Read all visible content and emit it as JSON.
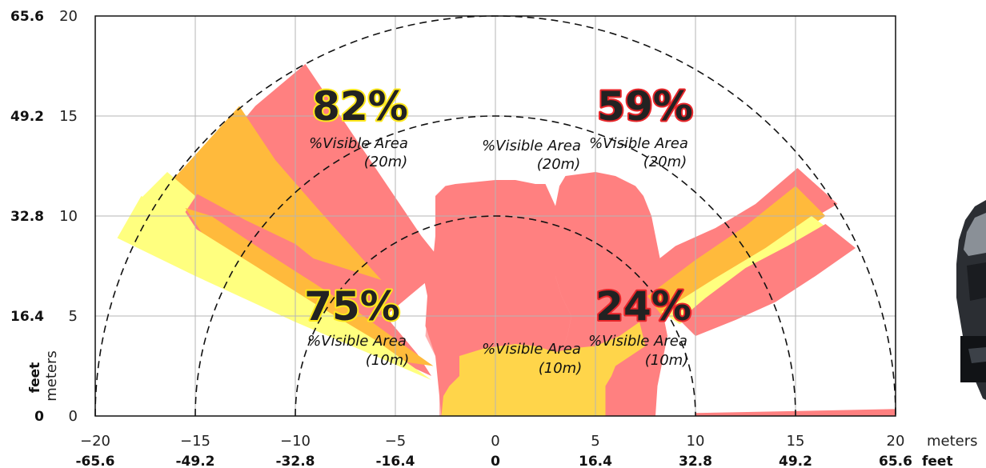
{
  "chart_data": {
    "type": "area",
    "title": "",
    "x_axis": {
      "range": [
        -20,
        20
      ],
      "ticks_meters": [
        "−20",
        "−15",
        "−10",
        "−5",
        "0",
        "5",
        "10",
        "15",
        "20"
      ],
      "ticks_feet": [
        "-65.6",
        "-49.2",
        "-32.8",
        "-16.4",
        "0",
        "16.4",
        "32.8",
        "49.2",
        "65.6"
      ],
      "unit_meters": "meters",
      "unit_feet": "feet"
    },
    "y_axis": {
      "range": [
        0,
        20
      ],
      "ticks_meters": [
        "0",
        "5",
        "10",
        "15",
        "20"
      ],
      "ticks_feet": [
        "0",
        "16.4",
        "32.8",
        "49.2",
        "65.6"
      ],
      "unit_meters": "meters",
      "unit_feet": "feet"
    },
    "grid": true,
    "range_rings_m": [
      10,
      15,
      20
    ],
    "annotations": [
      {
        "percent": "82%",
        "label_line1": "%Visible Area",
        "label_line2": "(20m)",
        "highlight": "#ffe81c",
        "pos": "upper-left"
      },
      {
        "percent": "59%",
        "label_line1": "%Visible Area",
        "label_line2": "(20m)",
        "highlight": "#e8262a",
        "pos": "upper-right"
      },
      {
        "percent": "75%",
        "label_line1": "%Visible Area",
        "label_line2": "(10m)",
        "highlight": "#ffe81c",
        "pos": "lower-left"
      },
      {
        "percent": "24%",
        "label_line1": "%Visible Area",
        "label_line2": "(10m)",
        "highlight": "#e8262a",
        "pos": "lower-right"
      }
    ],
    "center_labels": [
      {
        "line1": "%Visible Area",
        "line2": "(20m)"
      },
      {
        "line1": "%Visible Area",
        "line2": "(10m)"
      }
    ],
    "regions": [
      {
        "name": "inner-pink",
        "color": "#ffb0b0",
        "points": [
          [
            -2.8,
            0
          ],
          [
            -2.8,
            1
          ],
          [
            -2.4,
            2
          ],
          [
            -3,
            3
          ],
          [
            -3.5,
            4
          ],
          [
            -3.4,
            5
          ],
          [
            -3.2,
            6
          ],
          [
            -3.5,
            7
          ],
          [
            -3,
            8
          ],
          [
            -2.5,
            9
          ],
          [
            -0.5,
            9.7
          ],
          [
            0,
            9.9
          ],
          [
            1,
            9.9
          ],
          [
            2.5,
            9.6
          ],
          [
            4,
            8.8
          ],
          [
            5,
            8
          ],
          [
            6,
            6
          ],
          [
            7,
            5
          ],
          [
            7.5,
            3
          ],
          [
            8,
            0
          ]
        ]
      },
      {
        "name": "center-red",
        "color": "#ff8080",
        "points": [
          [
            2.5,
            0
          ],
          [
            2.8,
            2
          ],
          [
            3.2,
            3
          ],
          [
            3.6,
            4
          ],
          [
            3.8,
            5
          ],
          [
            3.3,
            6
          ],
          [
            3,
            7
          ],
          [
            3,
            8
          ],
          [
            3,
            9
          ],
          [
            3,
            10.5
          ],
          [
            3.2,
            11.5
          ],
          [
            3.5,
            12
          ],
          [
            5,
            12.2
          ],
          [
            6,
            12
          ],
          [
            7,
            11.5
          ],
          [
            7.4,
            11
          ],
          [
            7.8,
            10
          ],
          [
            8,
            9
          ],
          [
            8.2,
            8
          ],
          [
            8.4,
            7
          ],
          [
            8.5,
            6
          ],
          [
            8.4,
            5
          ],
          [
            8.6,
            4
          ],
          [
            8.4,
            3
          ],
          [
            8.1,
            1.5
          ],
          [
            8,
            0
          ]
        ]
      },
      {
        "name": "center-red-left",
        "color": "#ff8080",
        "points": [
          [
            -2.7,
            0
          ],
          [
            -3,
            3
          ],
          [
            -3.5,
            4.5
          ],
          [
            -3.4,
            6
          ],
          [
            -3.6,
            7
          ],
          [
            -3.1,
            8
          ],
          [
            -3,
            9
          ],
          [
            -3,
            11
          ],
          [
            -2.5,
            11.5
          ],
          [
            -2,
            11.6
          ],
          [
            0,
            11.8
          ],
          [
            1,
            11.8
          ],
          [
            2,
            11.6
          ],
          [
            2.5,
            11.6
          ],
          [
            3,
            10.5
          ],
          [
            3,
            9
          ],
          [
            3,
            8
          ],
          [
            3,
            7
          ],
          [
            3.3,
            6
          ],
          [
            3.8,
            5
          ],
          [
            3.6,
            4
          ],
          [
            3.2,
            3
          ],
          [
            2.8,
            2
          ],
          [
            2.5,
            0
          ]
        ]
      },
      {
        "name": "center-gold",
        "color": "#ffd54a",
        "points": [
          [
            -2.7,
            0
          ],
          [
            -2.6,
            1
          ],
          [
            -2.3,
            1.5
          ],
          [
            -1.8,
            2
          ],
          [
            -1.8,
            3
          ],
          [
            -0.5,
            3.4
          ],
          [
            1,
            3.6
          ],
          [
            2,
            3.5
          ],
          [
            3,
            3.2
          ],
          [
            4,
            3.4
          ],
          [
            5,
            3.5
          ],
          [
            6.2,
            4
          ],
          [
            7.2,
            4.7
          ],
          [
            7.5,
            3.5
          ],
          [
            6,
            2.5
          ],
          [
            5.8,
            2
          ],
          [
            5.5,
            1.5
          ],
          [
            5.5,
            0
          ]
        ]
      },
      {
        "name": "left-red-upper",
        "color": "#ff8080",
        "points": [
          [
            -2.5,
            7.5
          ],
          [
            -3.7,
            9
          ],
          [
            -9.5,
            17.6
          ],
          [
            -12,
            15.5
          ],
          [
            -13.5,
            13.7
          ],
          [
            -15.2,
            11.5
          ],
          [
            -6.7,
            4
          ]
        ]
      },
      {
        "name": "left-orange-upper",
        "color": "#ffba3c",
        "points": [
          [
            -5.7,
            6.8
          ],
          [
            -9,
            10.5
          ],
          [
            -11,
            12.8
          ],
          [
            -12.8,
            15.5
          ],
          [
            -15.5,
            12.5
          ],
          [
            -17.4,
            10.5
          ]
        ]
      },
      {
        "name": "left-yellow-upper",
        "color": "#ffff7f",
        "points": [
          [
            -6.7,
            5.9
          ],
          [
            -15,
            11
          ],
          [
            -16.4,
            12.2
          ],
          [
            -17.8,
            10.8
          ],
          [
            -15,
            9.2
          ]
        ]
      },
      {
        "name": "left-red-lower",
        "color": "#ff8080",
        "points": [
          [
            -3.2,
            2
          ],
          [
            -3.9,
            3.1
          ],
          [
            -6,
            5.6
          ],
          [
            -8,
            7
          ],
          [
            -10,
            8.6
          ],
          [
            -12.5,
            9.8
          ],
          [
            -14.9,
            11.1
          ],
          [
            -15.5,
            10.2
          ],
          [
            -14,
            7.9
          ],
          [
            -10,
            5.5
          ],
          [
            -6.5,
            3.5
          ]
        ]
      },
      {
        "name": "left-orange-lower",
        "color": "#ffba3c",
        "points": [
          [
            -3.1,
            2.5
          ],
          [
            -4.8,
            3.7
          ],
          [
            -7,
            5.3
          ],
          [
            -9,
            6.6
          ],
          [
            -11.5,
            8.2
          ],
          [
            -14.2,
            10
          ],
          [
            -15.5,
            10.4
          ],
          [
            -14.3,
            8.6
          ],
          [
            -11,
            6
          ],
          [
            -8,
            4.2
          ],
          [
            -5.2,
            2.8
          ]
        ]
      },
      {
        "name": "left-yellow-lower",
        "color": "#ffff7f",
        "points": [
          [
            -3.2,
            1.8
          ],
          [
            -6,
            3.8
          ],
          [
            -9,
            5.6
          ],
          [
            -12,
            7.5
          ],
          [
            -16,
            10
          ],
          [
            -17.7,
            11
          ],
          [
            -18.9,
            8.9
          ],
          [
            -15,
            7
          ],
          [
            -10,
            4.7
          ],
          [
            -6,
            3
          ]
        ]
      },
      {
        "name": "right-red-upper",
        "color": "#ff8080",
        "points": [
          [
            7.6,
            7.4
          ],
          [
            9,
            8.5
          ],
          [
            11,
            9.4
          ],
          [
            13,
            10.6
          ],
          [
            15.1,
            12.4
          ],
          [
            17.1,
            10.6
          ],
          [
            14,
            8.8
          ],
          [
            11,
            6.8
          ],
          [
            8.4,
            5.4
          ]
        ]
      },
      {
        "name": "right-orange-upper",
        "color": "#ffba3c",
        "points": [
          [
            7.6,
            6
          ],
          [
            10,
            7.8
          ],
          [
            12.5,
            9.5
          ],
          [
            15,
            11.5
          ],
          [
            16.5,
            10
          ],
          [
            14,
            8.3
          ],
          [
            11,
            6.3
          ],
          [
            8.4,
            4.9
          ]
        ]
      },
      {
        "name": "right-yellow-upper",
        "color": "#ffff7f",
        "points": [
          [
            8.3,
            5.2
          ],
          [
            11,
            6.9
          ],
          [
            13.5,
            8.4
          ],
          [
            15.8,
            10
          ],
          [
            17.5,
            8.7
          ],
          [
            15,
            7.2
          ],
          [
            12,
            5.9
          ],
          [
            9.2,
            4.6
          ]
        ]
      },
      {
        "name": "right-red-lower",
        "color": "#ff8080",
        "points": [
          [
            10,
            4
          ],
          [
            12,
            4.8
          ],
          [
            14,
            5.7
          ],
          [
            16,
            7
          ],
          [
            18,
            8.4
          ],
          [
            16.5,
            9.6
          ],
          [
            14.6,
            8.5
          ],
          [
            12.5,
            7.4
          ],
          [
            10.5,
            5.9
          ],
          [
            9.2,
            4.8
          ]
        ]
      },
      {
        "name": "ground-strip",
        "color": "#ff8080",
        "points": [
          [
            10,
            0
          ],
          [
            20,
            0
          ],
          [
            20,
            0.35
          ],
          [
            10,
            0.15
          ]
        ]
      }
    ]
  }
}
